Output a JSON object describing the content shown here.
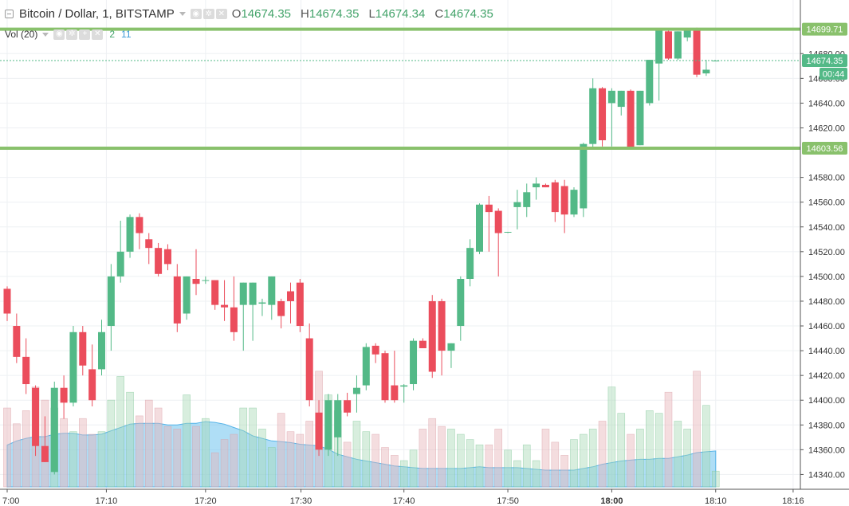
{
  "legend": {
    "symbol": "Bitcoin / Dollar, 1, BITSTAMP",
    "ohlc": [
      {
        "label": "O",
        "value": "14674.35"
      },
      {
        "label": "H",
        "value": "14674.35"
      },
      {
        "label": "L",
        "value": "14674.34"
      },
      {
        "label": "C",
        "value": "14674.35"
      }
    ],
    "volume_label": "Vol (20)",
    "volume_values": [
      "2",
      "11"
    ]
  },
  "chart_data": {
    "type": "candlestick",
    "time_labels": [
      "7:00",
      "17:10",
      "17:20",
      "17:30",
      "17:40",
      "17:50",
      "18:00",
      "18:10",
      "18:16"
    ],
    "y_ticks": [
      "14340.00",
      "14360.00",
      "14380.00",
      "14400.00",
      "14420.00",
      "14440.00",
      "14460.00",
      "14480.00",
      "14500.00",
      "14520.00",
      "14540.00",
      "14560.00",
      "14580.00",
      "14620.00",
      "14640.00",
      "14660.00",
      "14680.00"
    ],
    "ylim": [
      14320,
      14704
    ],
    "price_labels": {
      "resistance": "14699.71",
      "last": "14674.35",
      "support": "14603.56",
      "countdown": "00:44"
    },
    "levels": {
      "resistance": 14699.71,
      "support": 14603.56,
      "last": 14674.35
    },
    "candles": [
      {
        "o": 14490,
        "h": 14492,
        "l": 14464,
        "c": 14470
      },
      {
        "o": 14460,
        "h": 14470,
        "l": 14430,
        "c": 14435
      },
      {
        "o": 14435,
        "h": 14450,
        "l": 14405,
        "c": 14413
      },
      {
        "o": 14410,
        "h": 14412,
        "l": 14355,
        "c": 14363
      },
      {
        "o": 14363,
        "h": 14387,
        "l": 14350,
        "c": 14350
      },
      {
        "o": 14342,
        "h": 14415,
        "l": 14340,
        "c": 14410
      },
      {
        "o": 14410,
        "h": 14420,
        "l": 14385,
        "c": 14398
      },
      {
        "o": 14398,
        "h": 14460,
        "l": 14395,
        "c": 14455
      },
      {
        "o": 14455,
        "h": 14460,
        "l": 14420,
        "c": 14428
      },
      {
        "o": 14425,
        "h": 14445,
        "l": 14395,
        "c": 14400
      },
      {
        "o": 14425,
        "h": 14465,
        "l": 14420,
        "c": 14455
      },
      {
        "o": 14460,
        "h": 14510,
        "l": 14440,
        "c": 14500
      },
      {
        "o": 14500,
        "h": 14545,
        "l": 14495,
        "c": 14520
      },
      {
        "o": 14520,
        "h": 14550,
        "l": 14515,
        "c": 14548
      },
      {
        "o": 14548,
        "h": 14551,
        "l": 14522,
        "c": 14535
      },
      {
        "o": 14530,
        "h": 14535,
        "l": 14510,
        "c": 14523
      },
      {
        "o": 14523,
        "h": 14527,
        "l": 14500,
        "c": 14502
      },
      {
        "o": 14522,
        "h": 14526,
        "l": 14505,
        "c": 14510
      },
      {
        "o": 14500,
        "h": 14510,
        "l": 14455,
        "c": 14462
      },
      {
        "o": 14470,
        "h": 14500,
        "l": 14465,
        "c": 14500
      },
      {
        "o": 14498,
        "h": 14522,
        "l": 14485,
        "c": 14494
      },
      {
        "o": 14497,
        "h": 14500,
        "l": 14494,
        "c": 14497
      },
      {
        "o": 14497,
        "h": 14497,
        "l": 14473,
        "c": 14477
      },
      {
        "o": 14477,
        "h": 14497,
        "l": 14464,
        "c": 14475
      },
      {
        "o": 14475,
        "h": 14500,
        "l": 14448,
        "c": 14455
      },
      {
        "o": 14477,
        "h": 14495,
        "l": 14440,
        "c": 14495
      },
      {
        "o": 14477,
        "h": 14495,
        "l": 14448,
        "c": 14495
      },
      {
        "o": 14478,
        "h": 14482,
        "l": 14468,
        "c": 14479
      },
      {
        "o": 14477,
        "h": 14500,
        "l": 14465,
        "c": 14500
      },
      {
        "o": 14480,
        "h": 14482,
        "l": 14458,
        "c": 14468
      },
      {
        "o": 14488,
        "h": 14495,
        "l": 14462,
        "c": 14480
      },
      {
        "o": 14495,
        "h": 14498,
        "l": 14455,
        "c": 14460
      },
      {
        "o": 14450,
        "h": 14462,
        "l": 14395,
        "c": 14400
      },
      {
        "o": 14390,
        "h": 14400,
        "l": 14355,
        "c": 14360
      },
      {
        "o": 14360,
        "h": 14405,
        "l": 14355,
        "c": 14400
      },
      {
        "o": 14370,
        "h": 14405,
        "l": 14355,
        "c": 14400
      },
      {
        "o": 14400,
        "h": 14406,
        "l": 14387,
        "c": 14390
      },
      {
        "o": 14405,
        "h": 14420,
        "l": 14390,
        "c": 14410
      },
      {
        "o": 14412,
        "h": 14446,
        "l": 14408,
        "c": 14443
      },
      {
        "o": 14444,
        "h": 14446,
        "l": 14430,
        "c": 14437
      },
      {
        "o": 14438,
        "h": 14440,
        "l": 14398,
        "c": 14400
      },
      {
        "o": 14412,
        "h": 14440,
        "l": 14398,
        "c": 14400
      },
      {
        "o": 14411,
        "h": 14413,
        "l": 14398,
        "c": 14412
      },
      {
        "o": 14413,
        "h": 14450,
        "l": 14408,
        "c": 14448
      },
      {
        "o": 14448,
        "h": 14450,
        "l": 14442,
        "c": 14442
      },
      {
        "o": 14480,
        "h": 14485,
        "l": 14418,
        "c": 14423
      },
      {
        "o": 14480,
        "h": 14482,
        "l": 14420,
        "c": 14440
      },
      {
        "o": 14440,
        "h": 14446,
        "l": 14426,
        "c": 14446
      },
      {
        "o": 14460,
        "h": 14500,
        "l": 14448,
        "c": 14498
      },
      {
        "o": 14498,
        "h": 14530,
        "l": 14492,
        "c": 14523
      },
      {
        "o": 14520,
        "h": 14559,
        "l": 14518,
        "c": 14558
      },
      {
        "o": 14558,
        "h": 14565,
        "l": 14520,
        "c": 14552
      },
      {
        "o": 14553,
        "h": 14555,
        "l": 14500,
        "c": 14535
      },
      {
        "o": 14536,
        "h": 14536,
        "l": 14535,
        "c": 14536
      },
      {
        "o": 14556,
        "h": 14570,
        "l": 14538,
        "c": 14560
      },
      {
        "o": 14556,
        "h": 14575,
        "l": 14548,
        "c": 14568
      },
      {
        "o": 14572,
        "h": 14580,
        "l": 14562,
        "c": 14575
      },
      {
        "o": 14574,
        "h": 14575,
        "l": 14572,
        "c": 14572
      },
      {
        "o": 14576,
        "h": 14578,
        "l": 14544,
        "c": 14552
      },
      {
        "o": 14573,
        "h": 14578,
        "l": 14535,
        "c": 14550
      },
      {
        "o": 14550,
        "h": 14572,
        "l": 14548,
        "c": 14570
      },
      {
        "o": 14555,
        "h": 14608,
        "l": 14548,
        "c": 14607
      },
      {
        "o": 14607,
        "h": 14660,
        "l": 14603,
        "c": 14652
      },
      {
        "o": 14652,
        "h": 14653,
        "l": 14605,
        "c": 14610
      },
      {
        "o": 14640,
        "h": 14652,
        "l": 14605,
        "c": 14650
      },
      {
        "o": 14637,
        "h": 14650,
        "l": 14630,
        "c": 14650
      },
      {
        "o": 14650,
        "h": 14651,
        "l": 14603,
        "c": 14604
      },
      {
        "o": 14606,
        "h": 14650,
        "l": 14606,
        "c": 14650
      },
      {
        "o": 14640,
        "h": 14672,
        "l": 14638,
        "c": 14675
      },
      {
        "o": 14672,
        "h": 14700,
        "l": 14642,
        "c": 14700
      },
      {
        "o": 14698,
        "h": 14700,
        "l": 14675,
        "c": 14676
      },
      {
        "o": 14676,
        "h": 14698,
        "l": 14675,
        "c": 14698
      },
      {
        "o": 14693,
        "h": 14700,
        "l": 14690,
        "c": 14699
      },
      {
        "o": 14700,
        "h": 14701,
        "l": 14661,
        "c": 14663
      },
      {
        "o": 14664,
        "h": 14675,
        "l": 14662,
        "c": 14667
      },
      {
        "o": 14674.35,
        "h": 14674.35,
        "l": 14674.34,
        "c": 14674.35
      }
    ],
    "volumes": [
      30,
      24,
      29,
      38,
      33,
      30,
      26,
      21,
      26,
      20,
      21,
      33,
      42,
      36,
      27,
      33,
      30,
      23,
      22,
      35,
      23,
      26,
      13,
      18,
      20,
      30,
      30,
      22,
      15,
      28,
      21,
      20,
      25,
      44,
      35,
      29,
      17,
      25,
      21,
      20,
      15,
      12,
      10,
      14,
      22,
      26,
      23,
      22,
      20,
      18,
      16,
      16,
      22,
      14,
      10,
      16,
      10,
      22,
      17,
      12,
      18,
      20,
      22,
      25,
      38,
      28,
      20,
      22,
      29,
      28,
      36,
      25,
      22,
      44,
      31,
      6
    ],
    "volume_ma": [
      50,
      55,
      58,
      60,
      60,
      63,
      64,
      64,
      62,
      62,
      63,
      67,
      71,
      75,
      76,
      76,
      76,
      74,
      74,
      76,
      76,
      78,
      77,
      75,
      71,
      67,
      61,
      58,
      55,
      54,
      53,
      51,
      50,
      49,
      45,
      39,
      36,
      33,
      31,
      29,
      27,
      25,
      24,
      23,
      22,
      22,
      22,
      22,
      22,
      23,
      24,
      23,
      23,
      23,
      23,
      22,
      21,
      20,
      20,
      20,
      20,
      22,
      24,
      27,
      29,
      31,
      32,
      33,
      33,
      34,
      34,
      36,
      38,
      41,
      42,
      43
    ]
  }
}
